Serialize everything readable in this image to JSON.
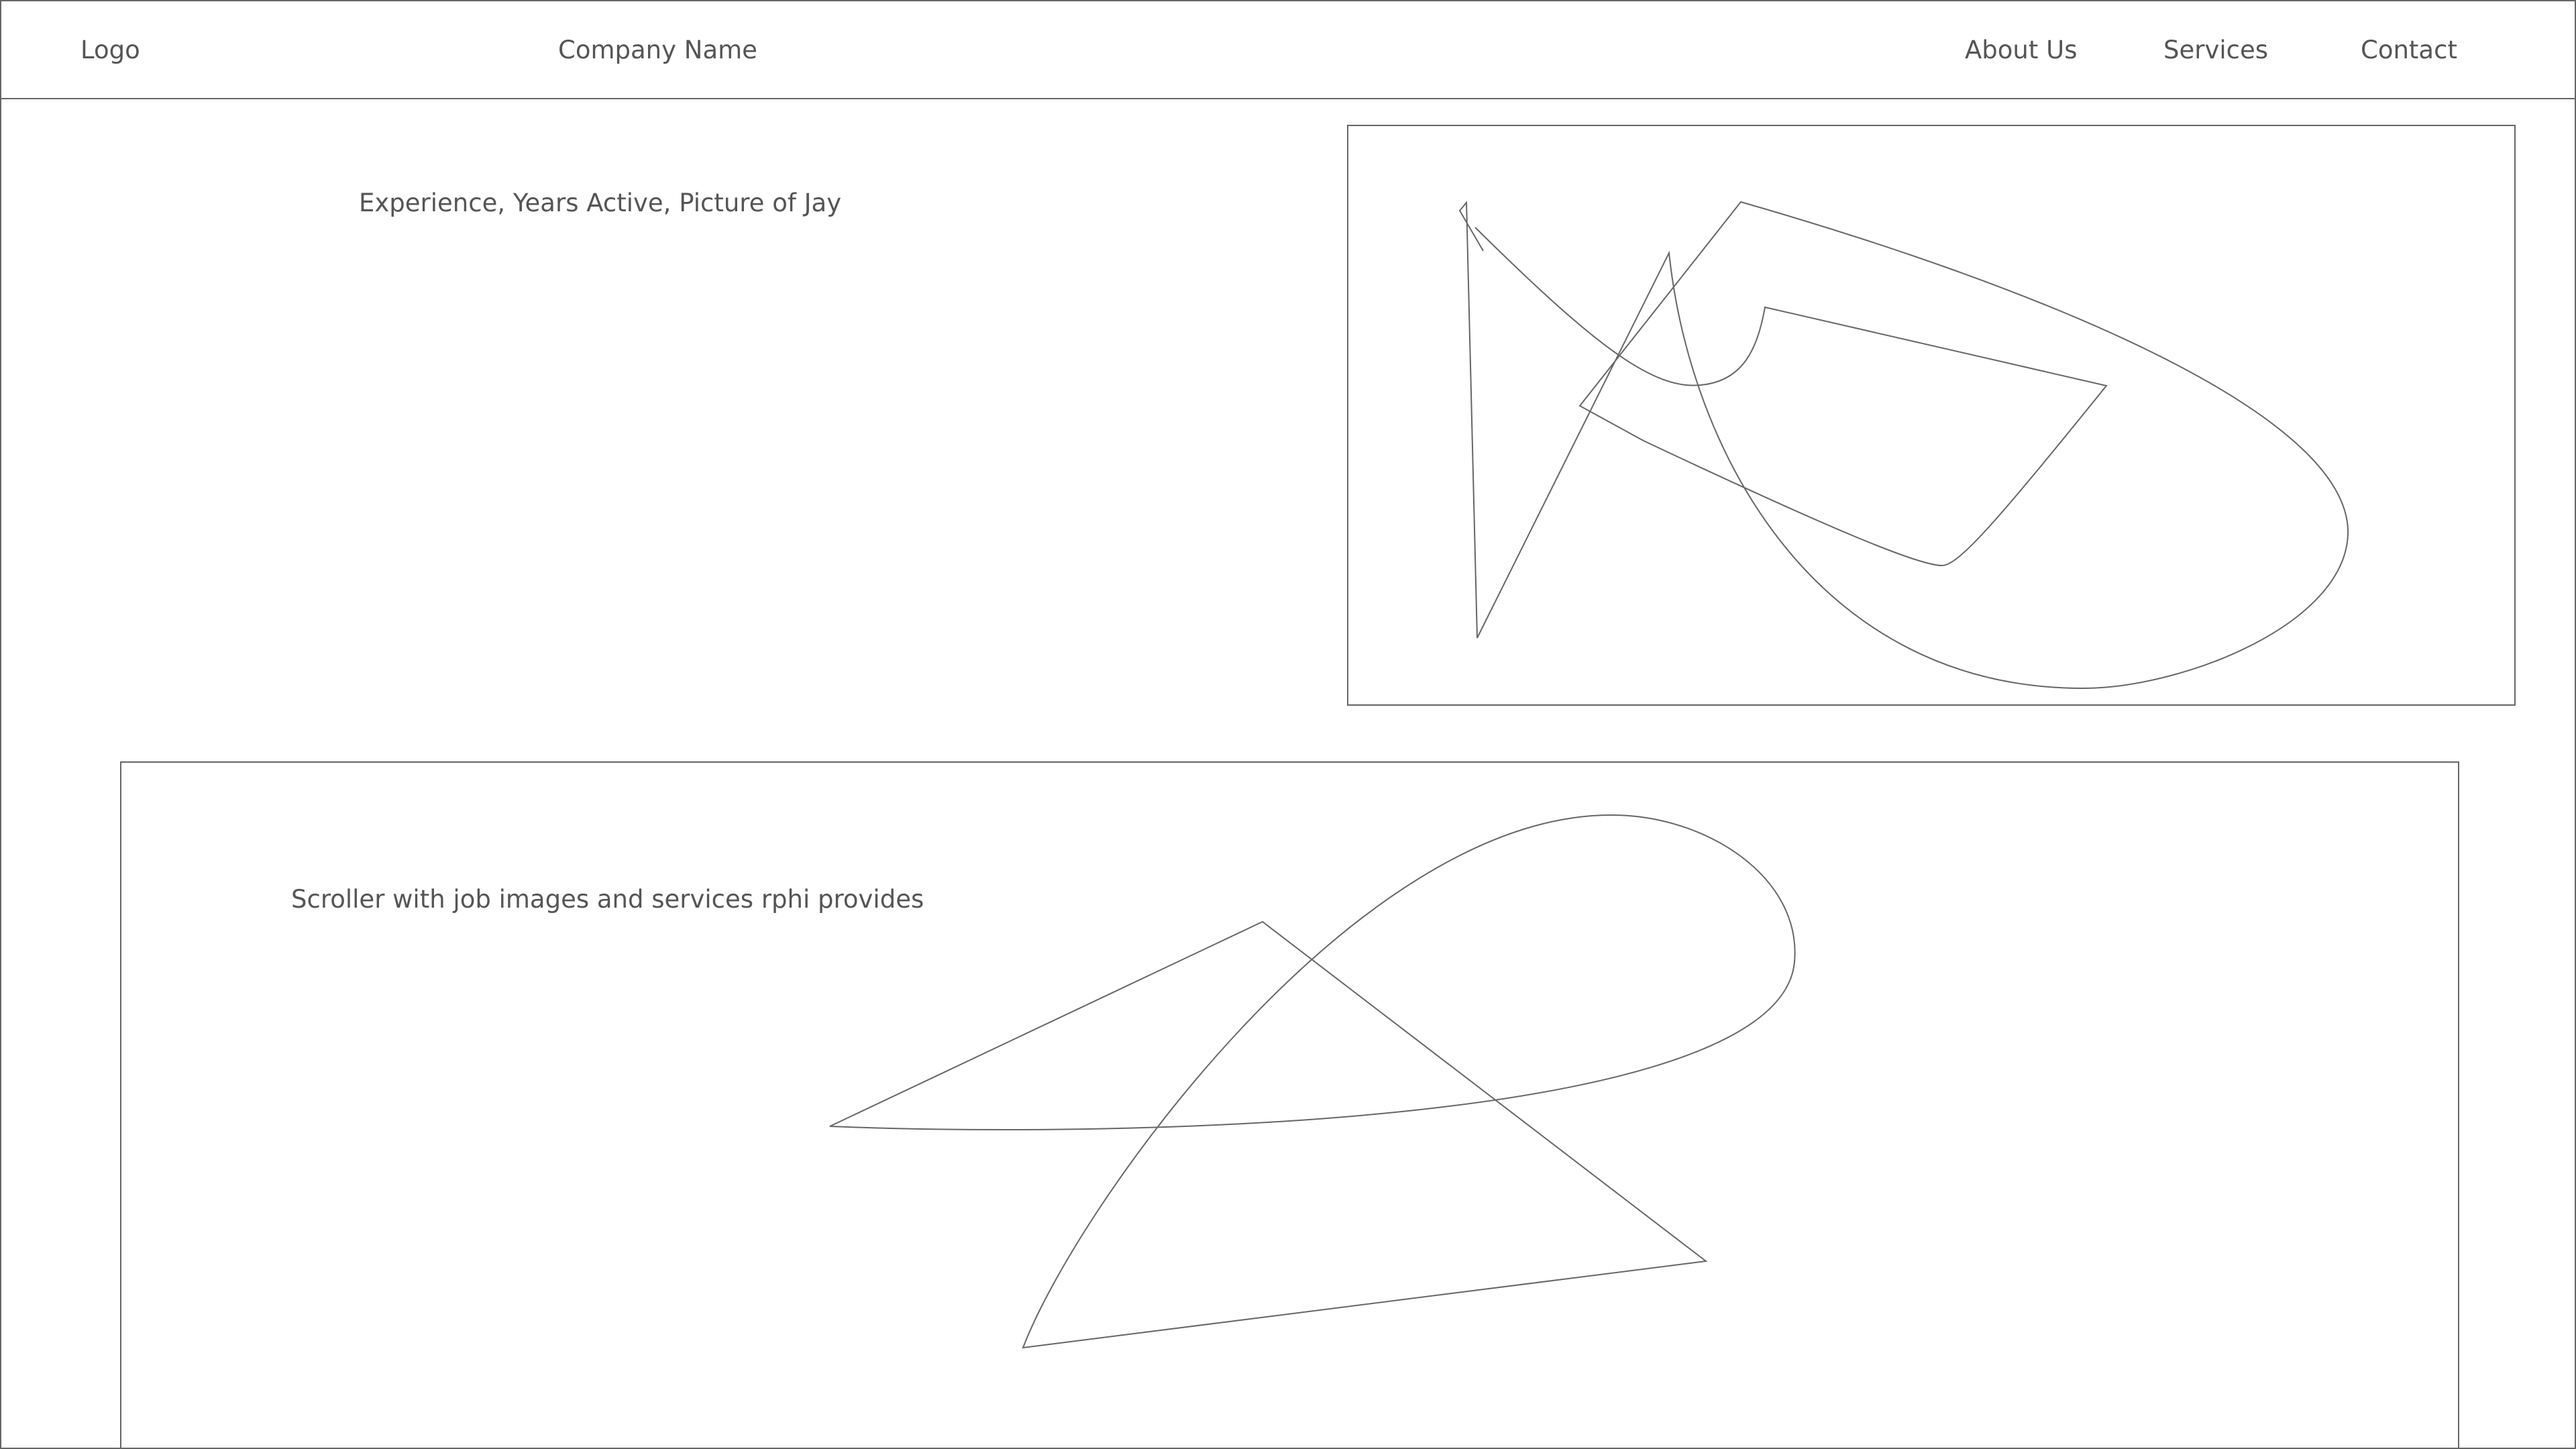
{
  "header": {
    "logo": "Logo",
    "company_name": "Company Name",
    "nav": {
      "about": "About Us",
      "services": "Services",
      "contact": "Contact"
    }
  },
  "about_section": {
    "placeholder_text": "Experience, Years Active, Picture of Jay"
  },
  "scroller_section": {
    "placeholder_text": "Scroller with job images and services rphi provides"
  },
  "colors": {
    "line": "#666666",
    "text": "#555555",
    "background": "#ffffff"
  }
}
